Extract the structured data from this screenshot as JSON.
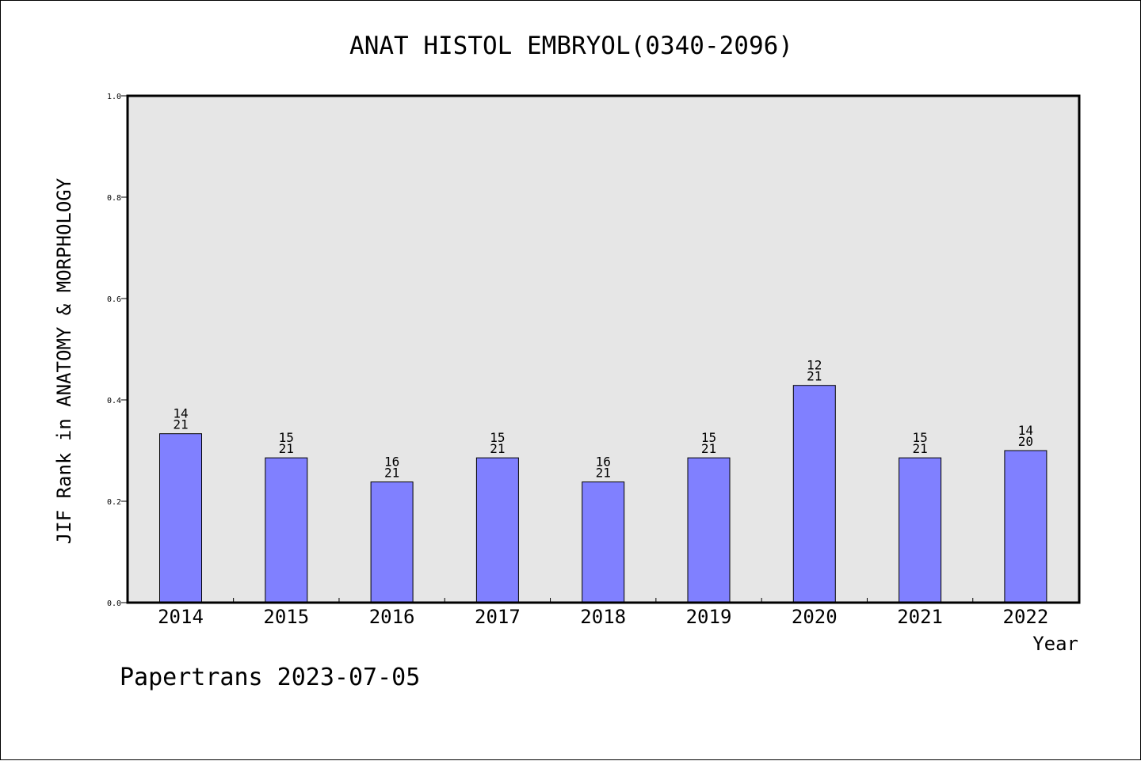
{
  "chart_data": {
    "type": "bar",
    "title": "ANAT HISTOL EMBRYOL(0340-2096)",
    "xlabel": "Year",
    "ylabel": "JIF Rank in ANATOMY & MORPHOLOGY",
    "categories": [
      "2014",
      "2015",
      "2016",
      "2017",
      "2018",
      "2019",
      "2020",
      "2021",
      "2022"
    ],
    "values": [
      0.3333,
      0.2857,
      0.2381,
      0.2857,
      0.2381,
      0.2857,
      0.4286,
      0.2857,
      0.3
    ],
    "bar_labels": [
      {
        "top": "14",
        "bottom": "21"
      },
      {
        "top": "15",
        "bottom": "21"
      },
      {
        "top": "16",
        "bottom": "21"
      },
      {
        "top": "15",
        "bottom": "21"
      },
      {
        "top": "16",
        "bottom": "21"
      },
      {
        "top": "15",
        "bottom": "21"
      },
      {
        "top": "12",
        "bottom": "21"
      },
      {
        "top": "15",
        "bottom": "21"
      },
      {
        "top": "14",
        "bottom": "20"
      }
    ],
    "ylim": [
      0,
      1.0
    ],
    "yticks": [
      "0.0",
      "0.2",
      "0.4",
      "0.6",
      "0.8",
      "1.0"
    ],
    "grid": false,
    "colors": {
      "bar_fill": "#8080ff",
      "plot_background": "#e6e6e6",
      "axis": "#000000"
    }
  },
  "footer": "Papertrans 2023-07-05"
}
